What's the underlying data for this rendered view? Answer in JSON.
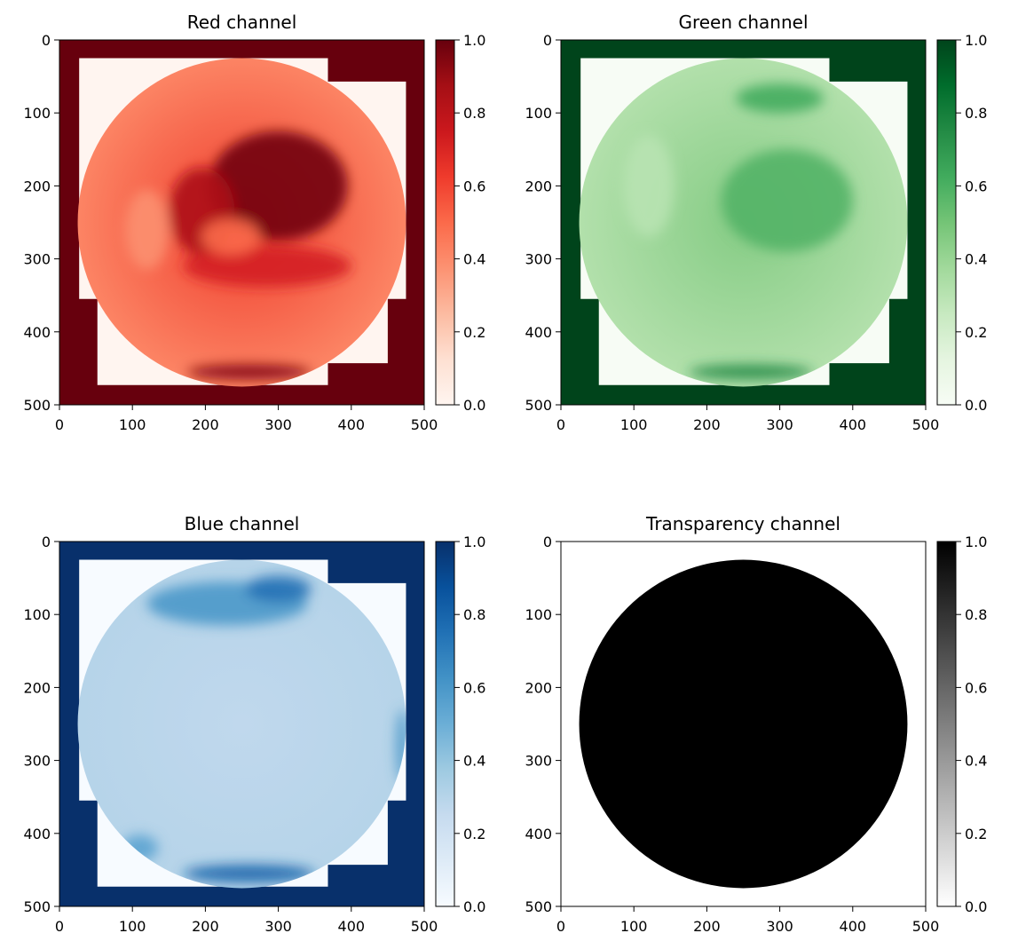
{
  "chart_data": [
    {
      "type": "heatmap",
      "title": "Red channel",
      "cmap": [
        "#fff5f0",
        "#fee0d2",
        "#fcbba1",
        "#fc9272",
        "#fb6a4a",
        "#ef3b2c",
        "#cb181d",
        "#a50f15",
        "#67000d"
      ],
      "xlim": [
        0,
        500
      ],
      "ylim": [
        500,
        0
      ],
      "xticks": [
        "0",
        "100",
        "200",
        "300",
        "400",
        "500"
      ],
      "yticks": [
        "0",
        "100",
        "200",
        "300",
        "400",
        "500"
      ],
      "colorbar": {
        "range": [
          0.0,
          1.0
        ],
        "ticks": [
          "0.0",
          "0.2",
          "0.4",
          "0.6",
          "0.8",
          "1.0"
        ]
      },
      "disk": {
        "cx": 250,
        "cy": 250,
        "r": 225,
        "edge_value": 0.42,
        "center_value": 0.62
      },
      "background_value": 1.0,
      "inner_region_value": 0.0,
      "features": [
        {
          "cx": 300,
          "cy": 200,
          "rx": 95,
          "ry": 75,
          "value": 0.98
        },
        {
          "cx": 195,
          "cy": 235,
          "rx": 45,
          "ry": 60,
          "value": 0.85
        },
        {
          "cx": 285,
          "cy": 310,
          "rx": 115,
          "ry": 28,
          "value": 0.72
        },
        {
          "cx": 235,
          "cy": 270,
          "rx": 40,
          "ry": 25,
          "value": 0.5
        },
        {
          "cx": 120,
          "cy": 260,
          "rx": 30,
          "ry": 55,
          "value": 0.38
        },
        {
          "cx": 260,
          "cy": 455,
          "rx": 85,
          "ry": 10,
          "value": 0.95
        }
      ]
    },
    {
      "type": "heatmap",
      "title": "Green channel",
      "cmap": [
        "#f7fcf5",
        "#e5f5e0",
        "#c7e9c0",
        "#a1d99b",
        "#74c476",
        "#41ab5d",
        "#238b45",
        "#006d2c",
        "#00441b"
      ],
      "xlim": [
        0,
        500
      ],
      "ylim": [
        500,
        0
      ],
      "xticks": [
        "0",
        "100",
        "200",
        "300",
        "400",
        "500"
      ],
      "yticks": [
        "0",
        "100",
        "200",
        "300",
        "400",
        "500"
      ],
      "colorbar": {
        "range": [
          0.0,
          1.0
        ],
        "ticks": [
          "0.0",
          "0.2",
          "0.4",
          "0.6",
          "0.8",
          "1.0"
        ]
      },
      "disk": {
        "cx": 250,
        "cy": 250,
        "r": 225,
        "edge_value": 0.32,
        "center_value": 0.45
      },
      "background_value": 1.0,
      "inner_region_value": 0.0,
      "features": [
        {
          "cx": 310,
          "cy": 220,
          "rx": 90,
          "ry": 70,
          "value": 0.58
        },
        {
          "cx": 300,
          "cy": 80,
          "rx": 60,
          "ry": 20,
          "value": 0.62
        },
        {
          "cx": 260,
          "cy": 455,
          "rx": 85,
          "ry": 10,
          "value": 0.75
        },
        {
          "cx": 120,
          "cy": 200,
          "rx": 35,
          "ry": 70,
          "value": 0.3
        }
      ]
    },
    {
      "type": "heatmap",
      "title": "Blue channel",
      "cmap": [
        "#f7fbff",
        "#deebf7",
        "#c6dbef",
        "#9ecae1",
        "#6baed6",
        "#4292c6",
        "#2171b5",
        "#08519c",
        "#08306b"
      ],
      "xlim": [
        0,
        500
      ],
      "ylim": [
        500,
        0
      ],
      "xticks": [
        "0",
        "100",
        "200",
        "300",
        "400",
        "500"
      ],
      "yticks": [
        "0",
        "100",
        "200",
        "300",
        "400",
        "500"
      ],
      "colorbar": {
        "range": [
          0.0,
          1.0
        ],
        "ticks": [
          "0.0",
          "0.2",
          "0.4",
          "0.6",
          "0.8",
          "1.0"
        ]
      },
      "disk": {
        "cx": 250,
        "cy": 250,
        "r": 225,
        "edge_value": 0.3,
        "center_value": 0.27
      },
      "background_value": 1.0,
      "inner_region_value": 0.0,
      "features": [
        {
          "cx": 230,
          "cy": 85,
          "rx": 110,
          "ry": 30,
          "value": 0.6
        },
        {
          "cx": 300,
          "cy": 65,
          "rx": 45,
          "ry": 18,
          "value": 0.75
        },
        {
          "cx": 260,
          "cy": 455,
          "rx": 90,
          "ry": 12,
          "value": 0.8
        },
        {
          "cx": 110,
          "cy": 420,
          "rx": 25,
          "ry": 18,
          "value": 0.55
        },
        {
          "cx": 470,
          "cy": 280,
          "rx": 8,
          "ry": 50,
          "value": 0.6
        }
      ]
    },
    {
      "type": "heatmap",
      "title": "Transparency channel",
      "cmap": [
        "#ffffff",
        "#000000"
      ],
      "xlim": [
        0,
        500
      ],
      "ylim": [
        500,
        0
      ],
      "xticks": [
        "0",
        "100",
        "200",
        "300",
        "400",
        "500"
      ],
      "yticks": [
        "0",
        "100",
        "200",
        "300",
        "400",
        "500"
      ],
      "colorbar": {
        "range": [
          0.0,
          1.0
        ],
        "ticks": [
          "0.0",
          "0.2",
          "0.4",
          "0.6",
          "0.8",
          "1.0"
        ]
      },
      "disk": {
        "cx": 250,
        "cy": 250,
        "r": 225,
        "edge_value": 1.0,
        "center_value": 1.0
      },
      "background_value": 0.0,
      "inner_region_value": null,
      "features": []
    }
  ]
}
